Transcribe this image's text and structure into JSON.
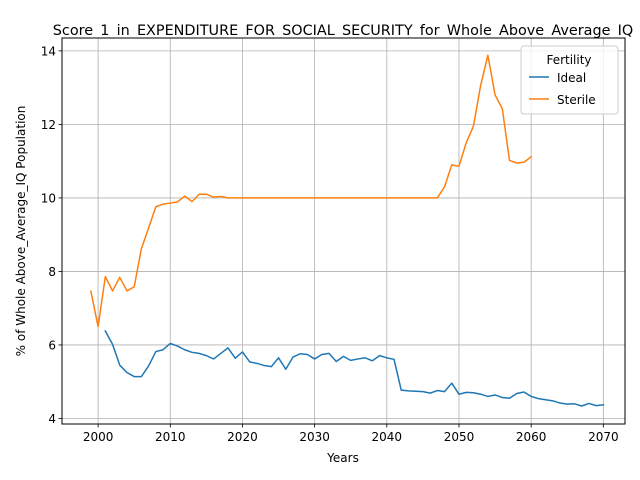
{
  "chart_data": {
    "type": "line",
    "title": "Score_1_in_EXPENDITURE_FOR_SOCIAL_SECURITY_for_Whole_Above_Average_IQ",
    "xlabel": "Years",
    "ylabel": "% of Whole Above_Average_IQ Population",
    "xlim": [
      1995,
      2073
    ],
    "ylim": [
      3.85,
      14.35
    ],
    "xticks": [
      2000,
      2010,
      2020,
      2030,
      2040,
      2050,
      2060,
      2070
    ],
    "yticks": [
      4,
      6,
      8,
      10,
      12,
      14
    ],
    "grid": true,
    "legend": {
      "title": "Fertility",
      "placement": "upper right"
    },
    "series": [
      {
        "name": "Ideal",
        "color": "#1f77b4",
        "x": [
          2001,
          2002,
          2003,
          2004,
          2005,
          2006,
          2007,
          2008,
          2009,
          2010,
          2011,
          2012,
          2013,
          2014,
          2015,
          2016,
          2017,
          2018,
          2019,
          2020,
          2021,
          2022,
          2023,
          2024,
          2025,
          2026,
          2027,
          2028,
          2029,
          2030,
          2031,
          2032,
          2033,
          2034,
          2035,
          2036,
          2037,
          2038,
          2039,
          2040,
          2041,
          2042,
          2043,
          2044,
          2045,
          2046,
          2047,
          2048,
          2049,
          2050,
          2051,
          2052,
          2053,
          2054,
          2055,
          2056,
          2057,
          2058,
          2059,
          2060,
          2061,
          2062,
          2063,
          2064,
          2065,
          2066,
          2067,
          2068,
          2069,
          2070
        ],
        "values": [
          6.38,
          6.02,
          5.45,
          5.25,
          5.14,
          5.14,
          5.43,
          5.82,
          5.87,
          6.04,
          5.97,
          5.87,
          5.8,
          5.77,
          5.71,
          5.62,
          5.77,
          5.92,
          5.64,
          5.81,
          5.54,
          5.5,
          5.44,
          5.41,
          5.65,
          5.34,
          5.67,
          5.76,
          5.74,
          5.62,
          5.74,
          5.77,
          5.55,
          5.69,
          5.58,
          5.62,
          5.65,
          5.57,
          5.71,
          5.65,
          5.61,
          4.77,
          4.75,
          4.74,
          4.73,
          4.69,
          4.76,
          4.73,
          4.96,
          4.66,
          4.71,
          4.7,
          4.66,
          4.6,
          4.64,
          4.57,
          4.55,
          4.68,
          4.72,
          4.6,
          4.54,
          4.51,
          4.48,
          4.42,
          4.39,
          4.4,
          4.34,
          4.41,
          4.35,
          4.37
        ]
      },
      {
        "name": "Sterile",
        "color": "#ff7f0e",
        "x": [
          1999,
          2000,
          2001,
          2002,
          2003,
          2004,
          2005,
          2006,
          2007,
          2008,
          2009,
          2010,
          2011,
          2012,
          2013,
          2014,
          2015,
          2016,
          2017,
          2018,
          2019,
          2020,
          2021,
          2022,
          2023,
          2024,
          2025,
          2026,
          2027,
          2028,
          2029,
          2030,
          2031,
          2032,
          2033,
          2034,
          2035,
          2036,
          2037,
          2038,
          2039,
          2040,
          2041,
          2042,
          2043,
          2044,
          2045,
          2046,
          2047,
          2048,
          2049,
          2050,
          2051,
          2052,
          2053,
          2054,
          2055,
          2056,
          2057,
          2058,
          2059,
          2060
        ],
        "values": [
          7.46,
          6.5,
          7.86,
          7.47,
          7.84,
          7.47,
          7.58,
          8.62,
          9.18,
          9.76,
          9.83,
          9.86,
          9.89,
          10.05,
          9.9,
          10.1,
          10.1,
          10.02,
          10.04,
          10.0,
          10.0,
          10.0,
          10.0,
          10.0,
          10.0,
          10.0,
          10.0,
          10.0,
          10.0,
          10.0,
          10.0,
          10.0,
          10.0,
          10.0,
          10.0,
          10.0,
          10.0,
          10.0,
          10.0,
          10.0,
          10.0,
          10.0,
          10.0,
          10.0,
          10.0,
          10.0,
          10.0,
          10.0,
          10.0,
          10.3,
          10.9,
          10.86,
          11.5,
          11.95,
          13.06,
          13.88,
          12.8,
          12.43,
          11.02,
          10.95,
          10.97,
          11.12
        ]
      }
    ]
  }
}
